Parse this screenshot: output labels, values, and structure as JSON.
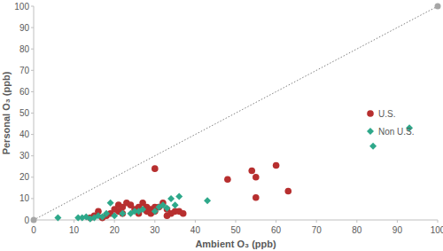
{
  "chart_data": {
    "type": "scatter",
    "x_label": "Ambient O₃ (ppb)",
    "y_label": "Personal O₃ (ppb)",
    "xlim": [
      0,
      100
    ],
    "ylim": [
      0,
      100
    ],
    "xticks": [
      0,
      10,
      20,
      30,
      40,
      50,
      60,
      70,
      80,
      90,
      100
    ],
    "yticks": [
      0,
      10,
      20,
      30,
      40,
      50,
      60,
      70,
      80,
      90,
      100
    ],
    "grid": false,
    "legend": "right",
    "series": [
      {
        "name": "U.S.",
        "color": "#b72f2f",
        "marker": "circle",
        "x": [
          14,
          15,
          16,
          17,
          18,
          19,
          20,
          21,
          21,
          22,
          22,
          23,
          24,
          25,
          26,
          26,
          27,
          28,
          28,
          29,
          29,
          30,
          30,
          31,
          32,
          33,
          33,
          34,
          35,
          36,
          37,
          30,
          48,
          54,
          55,
          55,
          60,
          63
        ],
        "values": [
          1,
          2,
          4,
          1,
          2,
          3,
          5,
          4,
          7,
          6,
          3,
          8,
          7,
          5,
          6,
          3,
          8,
          6,
          4,
          5,
          3,
          4,
          6,
          6,
          8,
          5,
          2,
          3,
          4,
          4,
          3,
          24,
          19,
          23,
          20,
          10.5,
          25.5,
          13.5
        ]
      },
      {
        "name": "Non U.S.",
        "color": "#2ea88a",
        "marker": "diamond",
        "x": [
          6,
          11,
          12,
          13,
          14,
          15,
          16,
          17,
          18,
          19,
          20,
          22,
          24,
          25,
          26,
          27,
          30,
          31,
          32,
          33,
          34,
          35,
          36,
          43,
          84,
          93
        ],
        "values": [
          1,
          1,
          1,
          1.5,
          0.5,
          1,
          2,
          1.5,
          3,
          8,
          2,
          3,
          3,
          4,
          4,
          5,
          4,
          6,
          7,
          5.5,
          10,
          7,
          11,
          9,
          34.5,
          43
        ]
      }
    ]
  }
}
